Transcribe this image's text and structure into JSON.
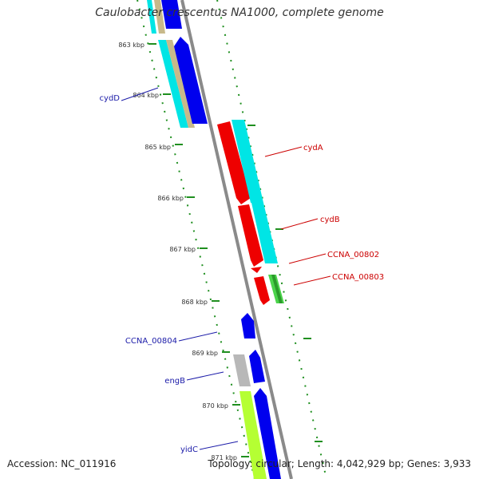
{
  "title": "Caulobacter crescentus NA1000, complete genome",
  "footer": {
    "accession": "Accession: NC_011916",
    "summary": "Topology: circular; Length: 4,042,929 bp; Genes: 3,933"
  },
  "ticks": [
    "863 kbp",
    "864 kbp",
    "865 kbp",
    "866 kbp",
    "867 kbp",
    "868 kbp",
    "869 kbp",
    "870 kbp",
    "871 kbp"
  ],
  "gene_labels": [
    {
      "name": "cydD",
      "color": "#1a1aa8"
    },
    {
      "name": "cydA",
      "color": "#cc0000"
    },
    {
      "name": "cydB",
      "color": "#cc0000"
    },
    {
      "name": "CCNA_00802",
      "color": "#cc0000"
    },
    {
      "name": "CCNA_00803",
      "color": "#cc0000"
    },
    {
      "name": "CCNA_00804",
      "color": "#1a1aa8"
    },
    {
      "name": "engB",
      "color": "#1a1aa8"
    },
    {
      "name": "yidC",
      "color": "#1a1aa8"
    }
  ],
  "colors": {
    "backbone": "#888888",
    "forward_cds": "#0000ee",
    "reverse_cds": "#ee0000",
    "rna": "#00e5e5",
    "tick_mark": "#1f8f1f",
    "other": "#b8b8b8",
    "green": "#4bd44b",
    "yellowgreen": "#b5ff33",
    "tan": "#c8b98a"
  }
}
